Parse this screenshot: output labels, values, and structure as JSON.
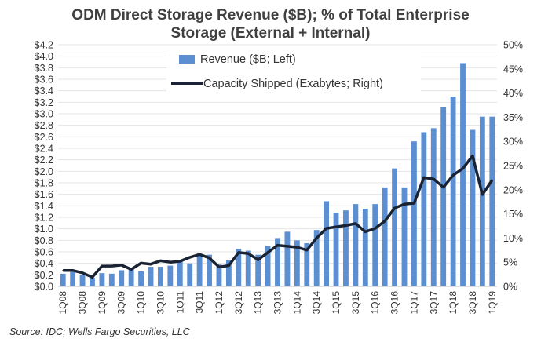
{
  "chart_data": {
    "type": "bar",
    "title_line1": "ODM Direct Storage Revenue ($B); % of Total Enterprise",
    "title_line2": "Storage (External + Internal)",
    "source": "Source: IDC; Wells Fargo Securities, LLC",
    "categories": [
      "1Q08",
      "2Q08",
      "3Q08",
      "4Q08",
      "1Q09",
      "2Q09",
      "3Q09",
      "4Q09",
      "1Q10",
      "2Q10",
      "3Q10",
      "4Q10",
      "1Q11",
      "2Q11",
      "3Q11",
      "4Q11",
      "1Q12",
      "2Q12",
      "3Q12",
      "4Q12",
      "1Q13",
      "2Q13",
      "3Q13",
      "4Q13",
      "1Q14",
      "2Q14",
      "3Q14",
      "4Q14",
      "1Q15",
      "2Q15",
      "3Q15",
      "4Q15",
      "1Q16",
      "2Q16",
      "3Q16",
      "4Q16",
      "1Q17",
      "2Q17",
      "3Q17",
      "4Q17",
      "1Q18",
      "2Q18",
      "3Q18",
      "4Q18",
      "1Q19"
    ],
    "x_tick_labels": [
      "1Q08",
      "3Q08",
      "1Q09",
      "3Q09",
      "1Q10",
      "3Q10",
      "1Q11",
      "3Q11",
      "1Q12",
      "3Q12",
      "1Q13",
      "3Q13",
      "1Q14",
      "3Q14",
      "1Q15",
      "3Q15",
      "1Q16",
      "3Q16",
      "1Q17",
      "3Q17",
      "1Q18",
      "3Q18",
      "1Q19"
    ],
    "series": [
      {
        "name": "Revenue ($B; Left)",
        "kind": "bar",
        "axis": "left",
        "color": "#5b8fd1",
        "values": [
          0.22,
          0.25,
          0.2,
          0.15,
          0.23,
          0.22,
          0.28,
          0.3,
          0.26,
          0.34,
          0.34,
          0.36,
          0.45,
          0.4,
          0.55,
          0.55,
          0.38,
          0.45,
          0.65,
          0.62,
          0.55,
          0.7,
          0.84,
          0.95,
          0.8,
          0.75,
          0.98,
          1.48,
          1.28,
          1.32,
          1.43,
          1.35,
          1.43,
          1.72,
          2.05,
          1.72,
          2.52,
          2.68,
          2.75,
          3.12,
          3.3,
          3.88,
          2.72,
          2.95,
          2.95
        ]
      },
      {
        "name": "Capacity Shipped (Exabytes; Right)",
        "kind": "line",
        "axis": "right",
        "color": "#1a2333",
        "values": [
          3.3,
          3.3,
          2.8,
          1.9,
          4.2,
          4.2,
          4.4,
          3.5,
          4.8,
          4.6,
          5.3,
          5.0,
          5.2,
          6.0,
          6.6,
          5.9,
          4.0,
          4.3,
          7.0,
          6.8,
          5.5,
          7.0,
          8.5,
          8.3,
          8.1,
          7.5,
          10.0,
          12.0,
          12.3,
          12.6,
          13.0,
          11.3,
          12.0,
          13.5,
          16.2,
          17.0,
          17.2,
          22.5,
          22.2,
          20.5,
          23.0,
          24.4,
          27.0,
          19.0,
          22.0
        ]
      }
    ],
    "y_left": {
      "min": 0,
      "max": 4.2,
      "step": 0.2,
      "tick_labels": [
        "$0.0",
        "$0.2",
        "$0.4",
        "$0.6",
        "$0.8",
        "$1.0",
        "$1.2",
        "$1.4",
        "$1.6",
        "$1.8",
        "$2.0",
        "$2.2",
        "$2.4",
        "$2.6",
        "$2.8",
        "$3.0",
        "$3.2",
        "$3.4",
        "$3.6",
        "$3.8",
        "$4.0",
        "$4.2"
      ]
    },
    "y_right": {
      "min": 0,
      "max": 50,
      "step": 5,
      "tick_labels": [
        "0%",
        "5%",
        "10%",
        "15%",
        "20%",
        "25%",
        "30%",
        "35%",
        "40%",
        "45%",
        "50%"
      ]
    },
    "grid": true,
    "legend_position": "top-left"
  }
}
